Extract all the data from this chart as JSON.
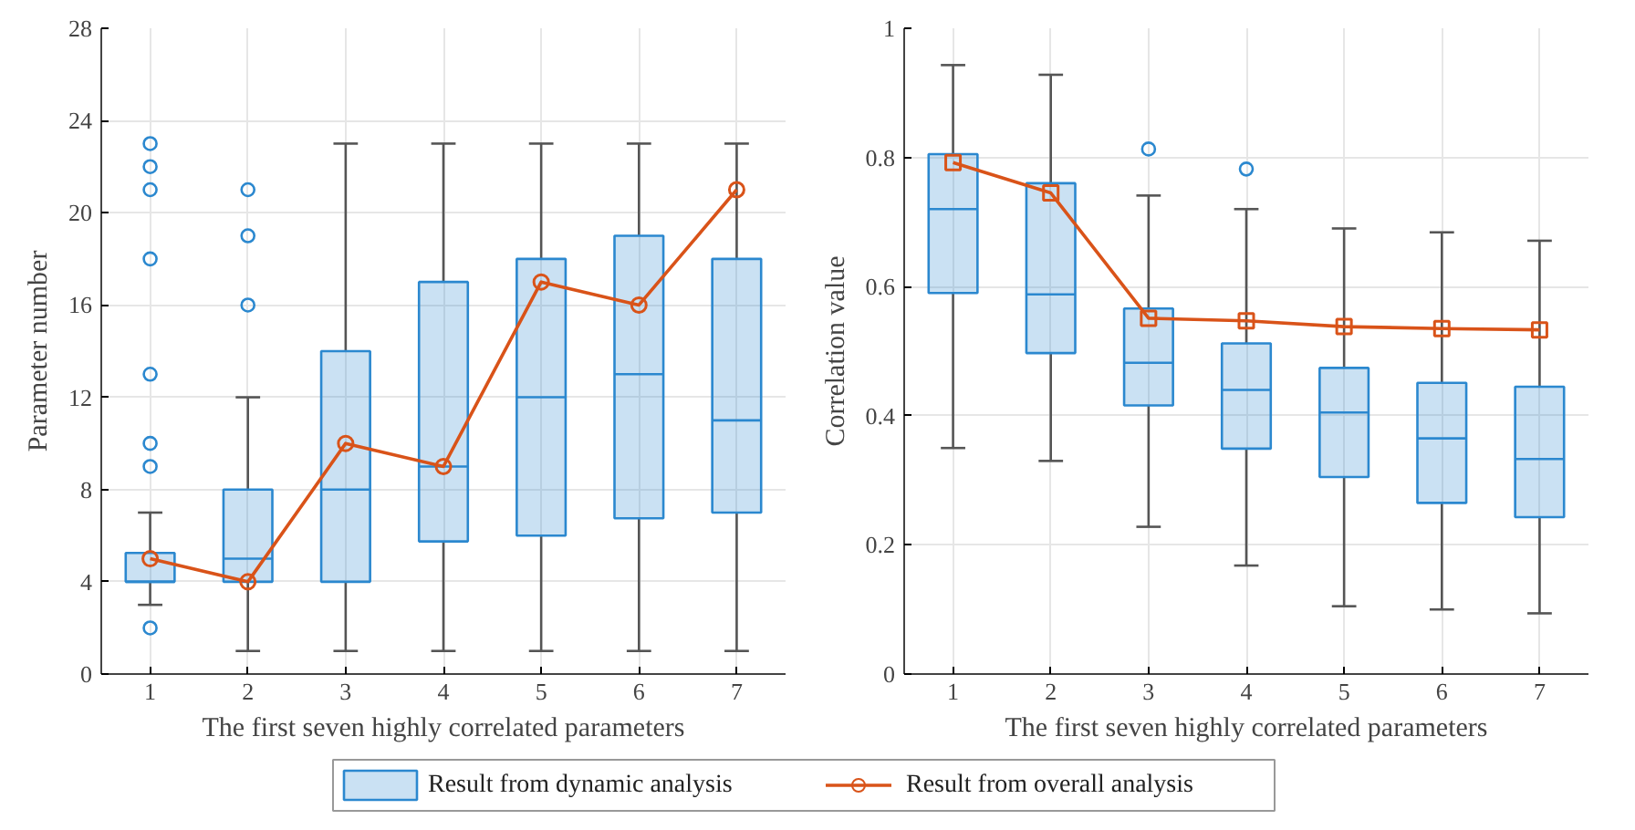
{
  "chart_data": [
    {
      "type": "box",
      "xlabel": "The first seven highly correlated parameters",
      "ylabel": "Parameter number",
      "categories": [
        "1",
        "2",
        "3",
        "4",
        "5",
        "6",
        "7"
      ],
      "ylim": [
        0,
        28
      ],
      "yticks": [
        0,
        4,
        8,
        12,
        16,
        20,
        24,
        28
      ],
      "grid": true,
      "legend": "bottom",
      "marker": "circle",
      "series": [
        {
          "name": "Result from dynamic analysis",
          "color": "#2b88cf",
          "boxes": [
            {
              "low": 3,
              "q1": 4,
              "median": 4,
              "q3": 5.25,
              "high": 7,
              "outliers": [
                2,
                9,
                10,
                13,
                18,
                21,
                22,
                23
              ]
            },
            {
              "low": 1,
              "q1": 4,
              "median": 5,
              "q3": 8,
              "high": 12,
              "outliers": [
                16,
                19,
                21
              ]
            },
            {
              "low": 1,
              "q1": 4,
              "median": 8,
              "q3": 14,
              "high": 23
            },
            {
              "low": 1,
              "q1": 5.75,
              "median": 9,
              "q3": 17,
              "high": 23
            },
            {
              "low": 1,
              "q1": 6,
              "median": 12,
              "q3": 18,
              "high": 23
            },
            {
              "low": 1,
              "q1": 6.75,
              "median": 13,
              "q3": 19,
              "high": 23
            },
            {
              "low": 1,
              "q1": 7,
              "median": 11,
              "q3": 18,
              "high": 23
            }
          ]
        },
        {
          "name": "Result from overall analysis",
          "type": "line",
          "color": "#d95319",
          "values": [
            5,
            4,
            10,
            9,
            17,
            16,
            21
          ]
        }
      ]
    },
    {
      "type": "box",
      "xlabel": "The first seven highly correlated parameters",
      "ylabel": "Correlation value",
      "categories": [
        "1",
        "2",
        "3",
        "4",
        "5",
        "6",
        "7"
      ],
      "ylim": [
        0,
        1
      ],
      "yticks": [
        0,
        0.2,
        0.4,
        0.6,
        0.8,
        1
      ],
      "grid": true,
      "marker": "square",
      "series": [
        {
          "color": "#2b88cf",
          "boxes": [
            {
              "low": 0.35,
              "q1": 0.59,
              "median": 0.72,
              "q3": 0.805,
              "high": 0.943
            },
            {
              "low": 0.33,
              "q1": 0.497,
              "median": 0.588,
              "q3": 0.76,
              "high": 0.928
            },
            {
              "low": 0.228,
              "q1": 0.416,
              "median": 0.482,
              "q3": 0.566,
              "high": 0.741,
              "outliers": [
                0.813
              ]
            },
            {
              "low": 0.168,
              "q1": 0.349,
              "median": 0.44,
              "q3": 0.512,
              "high": 0.72,
              "outliers": [
                0.782
              ]
            },
            {
              "low": 0.105,
              "q1": 0.305,
              "median": 0.405,
              "q3": 0.474,
              "high": 0.69
            },
            {
              "low": 0.1,
              "q1": 0.265,
              "median": 0.365,
              "q3": 0.451,
              "high": 0.684
            },
            {
              "low": 0.094,
              "q1": 0.243,
              "median": 0.333,
              "q3": 0.445,
              "high": 0.671
            }
          ]
        },
        {
          "type": "line",
          "color": "#d95319",
          "values": [
            0.792,
            0.745,
            0.551,
            0.547,
            0.538,
            0.535,
            0.533
          ]
        }
      ]
    }
  ]
}
